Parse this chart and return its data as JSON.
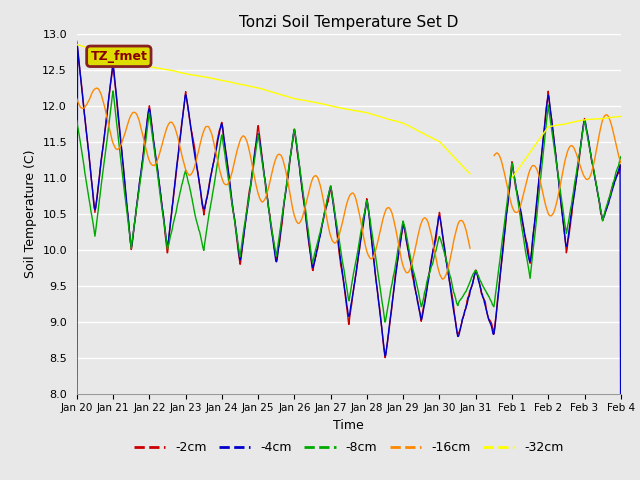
{
  "title": "Tonzi Soil Temperature Set D",
  "xlabel": "Time",
  "ylabel": "Soil Temperature (C)",
  "ylim": [
    8.0,
    13.0
  ],
  "yticks": [
    8.0,
    8.5,
    9.0,
    9.5,
    10.0,
    10.5,
    11.0,
    11.5,
    12.0,
    12.5,
    13.0
  ],
  "legend_label": "TZ_fmet",
  "series_labels": [
    "-2cm",
    "-4cm",
    "-8cm",
    "-16cm",
    "-32cm"
  ],
  "series_colors": [
    "#cc0000",
    "#0000cc",
    "#00aa00",
    "#ff8800",
    "#ffff00"
  ],
  "background_color": "#e8e8e8",
  "n_points": 1440,
  "end_day": 15.0,
  "xtick_positions": [
    0,
    1,
    2,
    3,
    4,
    5,
    6,
    7,
    8,
    9,
    10,
    11,
    12,
    13,
    14,
    15
  ],
  "xtick_labels": [
    "Jan 20",
    "Jan 21",
    "Jan 22",
    "Jan 23",
    "Jan 24",
    "Jan 25",
    "Jan 26",
    "Jan 27",
    "Jan 28",
    "Jan 29",
    "Jan 30",
    "Jan 31",
    "Feb 1",
    "Feb 2",
    "Feb 3",
    "Feb 4"
  ]
}
